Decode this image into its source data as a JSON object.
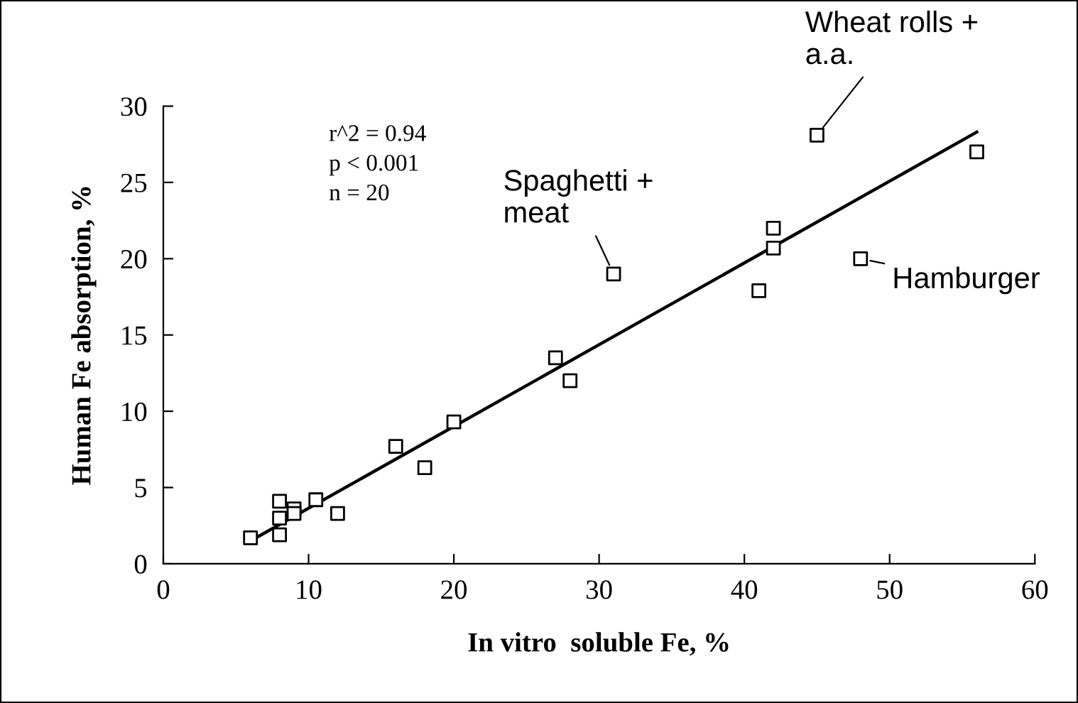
{
  "chart_data": {
    "type": "scatter",
    "xlabel": "In vitro  soluble Fe, %",
    "ylabel": "Human Fe absorption, %",
    "xlim": [
      0,
      60
    ],
    "xticks": [
      0,
      10,
      20,
      30,
      40,
      50,
      60
    ],
    "ylim": [
      0,
      30
    ],
    "yticks": [
      0,
      5,
      10,
      15,
      20,
      25,
      30
    ],
    "grid": false,
    "series": [
      {
        "marker": "square",
        "color": "#000000",
        "x": [
          6,
          8,
          8,
          8,
          9,
          9,
          10.5,
          12,
          16,
          18,
          20,
          27,
          28,
          31,
          41,
          42,
          42,
          45,
          48,
          56
        ],
        "values": [
          1.7,
          4.1,
          3.0,
          1.9,
          3.6,
          3.3,
          4.2,
          3.3,
          7.7,
          6.3,
          9.3,
          13.5,
          12.0,
          19.0,
          17.9,
          22.0,
          20.7,
          28.1,
          20.0,
          27.0
        ]
      },
      {
        "type": "line",
        "color": "#000000",
        "line_style": "solid",
        "x": [
          6,
          56
        ],
        "values": [
          1.5,
          28.3
        ]
      }
    ],
    "annotations": [
      "r^2 = 0.94\np < 0.001\nn = 20",
      {
        "text": "Wheat rolls +\na.a.",
        "x": 45,
        "y": 28.1
      },
      {
        "text": "Spaghetti +\nmeat",
        "x": 31,
        "y": 19.0
      },
      {
        "text": "Hamburger",
        "x": 48,
        "y": 20.0
      }
    ]
  }
}
